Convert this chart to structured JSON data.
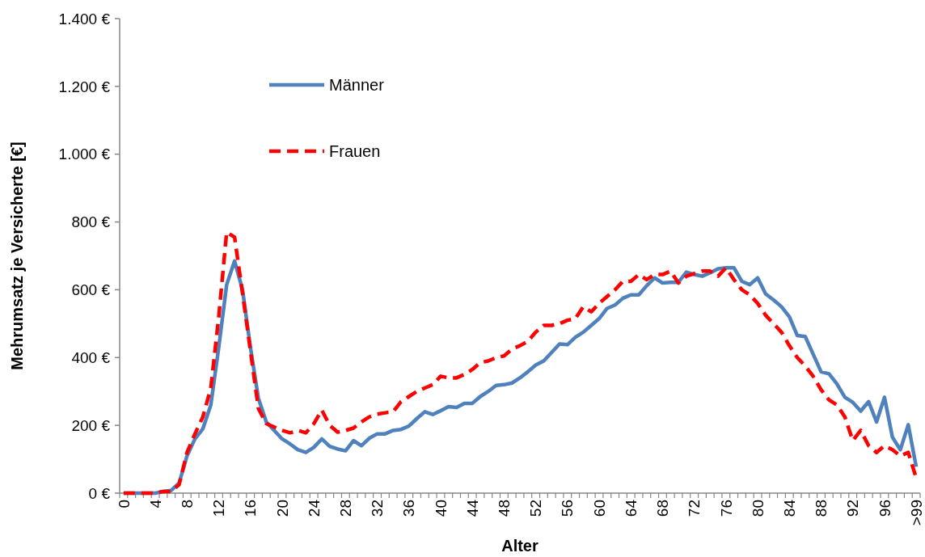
{
  "chart_data": {
    "type": "line",
    "xlabel": "Alter",
    "ylabel": "Mehrumsatz je Versicherte [€]",
    "categories": [
      "0",
      null,
      null,
      null,
      "4",
      null,
      null,
      null,
      "8",
      null,
      null,
      null,
      "12",
      null,
      null,
      null,
      "16",
      null,
      null,
      null,
      "20",
      null,
      null,
      null,
      "24",
      null,
      null,
      null,
      "28",
      null,
      null,
      null,
      "32",
      null,
      null,
      null,
      "36",
      null,
      null,
      null,
      "40",
      null,
      null,
      null,
      "44",
      null,
      null,
      null,
      "48",
      null,
      null,
      null,
      "52",
      null,
      null,
      null,
      "56",
      null,
      null,
      null,
      "60",
      null,
      null,
      null,
      "64",
      null,
      null,
      null,
      "68",
      null,
      null,
      null,
      "72",
      null,
      null,
      null,
      "76",
      null,
      null,
      null,
      "80",
      null,
      null,
      null,
      "84",
      null,
      null,
      null,
      "88",
      null,
      null,
      null,
      "92",
      null,
      null,
      null,
      "96",
      null,
      null,
      null,
      ">99"
    ],
    "series": [
      {
        "name": "Männer",
        "color": "#4f81bd",
        "line_style": "solid",
        "values": [
          0,
          0,
          0,
          0,
          0,
          5,
          8,
          30,
          110,
          160,
          190,
          260,
          430,
          615,
          685,
          600,
          430,
          280,
          210,
          185,
          160,
          145,
          128,
          120,
          135,
          160,
          138,
          130,
          125,
          155,
          140,
          162,
          175,
          175,
          185,
          188,
          198,
          220,
          240,
          232,
          243,
          255,
          253,
          265,
          265,
          285,
          300,
          318,
          320,
          325,
          340,
          358,
          378,
          390,
          415,
          440,
          438,
          460,
          475,
          495,
          515,
          545,
          555,
          575,
          585,
          585,
          612,
          635,
          620,
          622,
          622,
          652,
          645,
          640,
          650,
          662,
          665,
          665,
          625,
          615,
          635,
          588,
          570,
          550,
          520,
          465,
          462,
          410,
          358,
          352,
          322,
          283,
          268,
          242,
          270,
          210,
          283,
          165,
          128,
          202,
          78
        ]
      },
      {
        "name": "Frauen",
        "color": "#ff0000",
        "line_style": "dashed",
        "values": [
          0,
          0,
          0,
          0,
          0,
          5,
          5,
          25,
          120,
          175,
          225,
          310,
          520,
          770,
          755,
          590,
          420,
          250,
          205,
          195,
          185,
          178,
          185,
          178,
          205,
          245,
          200,
          180,
          185,
          192,
          210,
          225,
          233,
          237,
          240,
          270,
          285,
          300,
          310,
          320,
          345,
          340,
          340,
          350,
          365,
          385,
          390,
          400,
          405,
          425,
          435,
          448,
          475,
          495,
          495,
          500,
          510,
          515,
          550,
          535,
          560,
          580,
          600,
          625,
          625,
          645,
          630,
          645,
          645,
          655,
          620,
          640,
          648,
          655,
          655,
          640,
          665,
          630,
          600,
          585,
          560,
          525,
          500,
          475,
          435,
          400,
          375,
          345,
          305,
          275,
          260,
          225,
          155,
          185,
          140,
          120,
          140,
          128,
          110,
          120,
          45
        ]
      }
    ],
    "ylim": [
      0,
      1400
    ],
    "yticks": [
      {
        "value": 0,
        "label": "0 €"
      },
      {
        "value": 200,
        "label": "200 €"
      },
      {
        "value": 400,
        "label": "400 €"
      },
      {
        "value": 600,
        "label": "600 €"
      },
      {
        "value": 800,
        "label": "800 €"
      },
      {
        "value": 1000,
        "label": "1.000 €"
      },
      {
        "value": 1200,
        "label": "1.200 €"
      },
      {
        "value": 1400,
        "label": "1.400 €"
      }
    ],
    "grid": false,
    "legend": "top left",
    "marker": "none"
  }
}
